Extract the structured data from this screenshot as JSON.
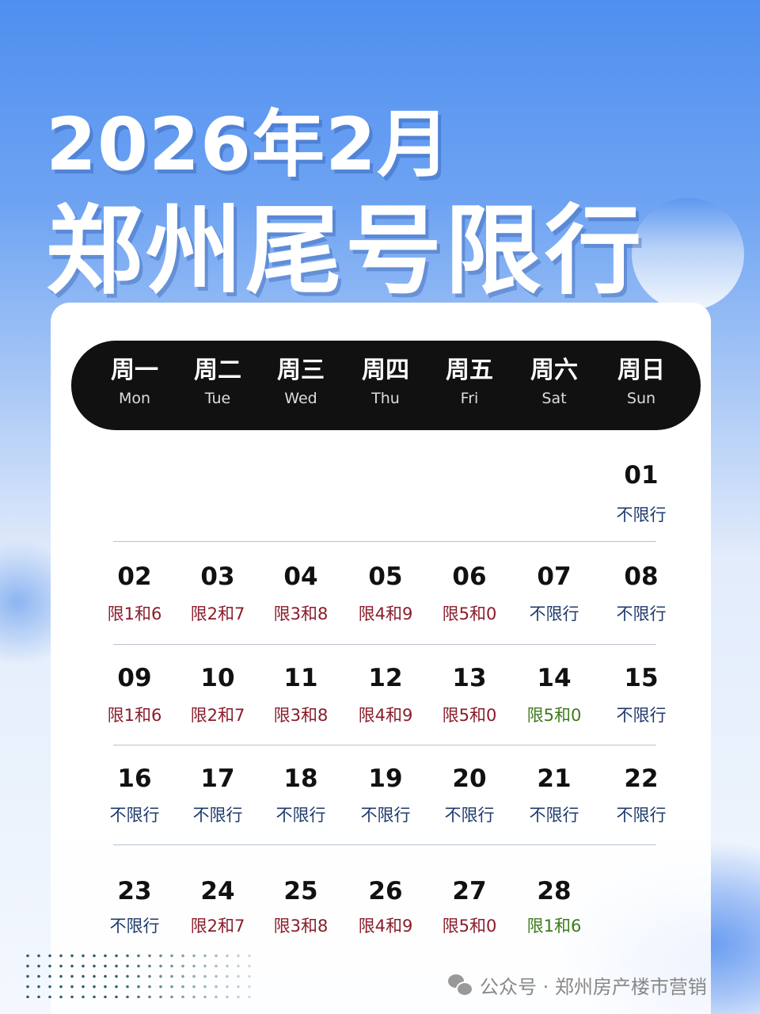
{
  "title": {
    "line1": "2026年2月",
    "line2": "郑州尾号限行"
  },
  "colors": {
    "restricted": "#8a1c2b",
    "unrestricted": "#1f3a6c",
    "special": "#3d7a1c",
    "header_bg": "#111111"
  },
  "weekdays": [
    {
      "zh": "周一",
      "en": "Mon"
    },
    {
      "zh": "周二",
      "en": "Tue"
    },
    {
      "zh": "周三",
      "en": "Wed"
    },
    {
      "zh": "周四",
      "en": "Thu"
    },
    {
      "zh": "周五",
      "en": "Fri"
    },
    {
      "zh": "周六",
      "en": "Sat"
    },
    {
      "zh": "周日",
      "en": "Sun"
    }
  ],
  "weeks": [
    [
      null,
      null,
      null,
      null,
      null,
      null,
      {
        "day": "01",
        "rule": "不限行",
        "type": "unrestricted"
      }
    ],
    [
      {
        "day": "02",
        "rule": "限1和6",
        "type": "restricted"
      },
      {
        "day": "03",
        "rule": "限2和7",
        "type": "restricted"
      },
      {
        "day": "04",
        "rule": "限3和8",
        "type": "restricted"
      },
      {
        "day": "05",
        "rule": "限4和9",
        "type": "restricted"
      },
      {
        "day": "06",
        "rule": "限5和0",
        "type": "restricted"
      },
      {
        "day": "07",
        "rule": "不限行",
        "type": "unrestricted"
      },
      {
        "day": "08",
        "rule": "不限行",
        "type": "unrestricted"
      }
    ],
    [
      {
        "day": "09",
        "rule": "限1和6",
        "type": "restricted"
      },
      {
        "day": "10",
        "rule": "限2和7",
        "type": "restricted"
      },
      {
        "day": "11",
        "rule": "限3和8",
        "type": "restricted"
      },
      {
        "day": "12",
        "rule": "限4和9",
        "type": "restricted"
      },
      {
        "day": "13",
        "rule": "限5和0",
        "type": "restricted"
      },
      {
        "day": "14",
        "rule": "限5和0",
        "type": "special"
      },
      {
        "day": "15",
        "rule": "不限行",
        "type": "unrestricted"
      }
    ],
    [
      {
        "day": "16",
        "rule": "不限行",
        "type": "unrestricted"
      },
      {
        "day": "17",
        "rule": "不限行",
        "type": "unrestricted"
      },
      {
        "day": "18",
        "rule": "不限行",
        "type": "unrestricted"
      },
      {
        "day": "19",
        "rule": "不限行",
        "type": "unrestricted"
      },
      {
        "day": "20",
        "rule": "不限行",
        "type": "unrestricted"
      },
      {
        "day": "21",
        "rule": "不限行",
        "type": "unrestricted"
      },
      {
        "day": "22",
        "rule": "不限行",
        "type": "unrestricted"
      }
    ],
    [
      {
        "day": "23",
        "rule": "不限行",
        "type": "unrestricted"
      },
      {
        "day": "24",
        "rule": "限2和7",
        "type": "restricted"
      },
      {
        "day": "25",
        "rule": "限3和8",
        "type": "restricted"
      },
      {
        "day": "26",
        "rule": "限4和9",
        "type": "restricted"
      },
      {
        "day": "27",
        "rule": "限5和0",
        "type": "restricted"
      },
      {
        "day": "28",
        "rule": "限1和6",
        "type": "special"
      },
      null
    ]
  ],
  "watermark": {
    "icon": "wechat-icon",
    "text": "公众号 · 郑州房产楼市营销"
  }
}
